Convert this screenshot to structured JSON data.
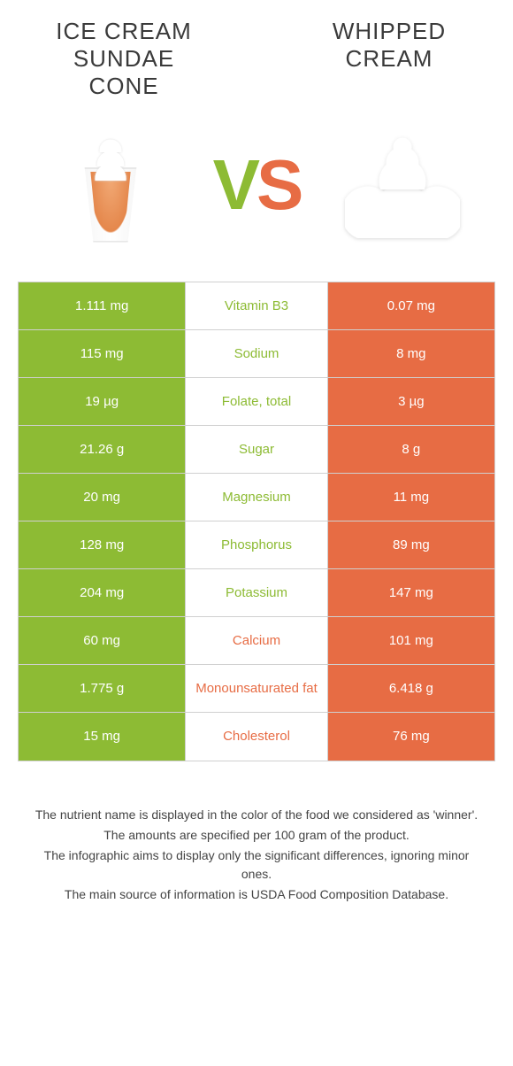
{
  "foods": {
    "left": {
      "title": "Ice cream sundae cone"
    },
    "right": {
      "title": "Whipped cream"
    }
  },
  "vs_label": {
    "v": "V",
    "s": "S"
  },
  "colors": {
    "left": "#8dbb34",
    "right": "#e76c44",
    "border": "#d0d0d0",
    "bg": "#ffffff"
  },
  "table": {
    "rows": [
      {
        "nutrient": "Vitamin B3",
        "left": "1.111 mg",
        "right": "0.07 mg",
        "winner": "left"
      },
      {
        "nutrient": "Sodium",
        "left": "115 mg",
        "right": "8 mg",
        "winner": "left"
      },
      {
        "nutrient": "Folate, total",
        "left": "19 µg",
        "right": "3 µg",
        "winner": "left"
      },
      {
        "nutrient": "Sugar",
        "left": "21.26 g",
        "right": "8 g",
        "winner": "left"
      },
      {
        "nutrient": "Magnesium",
        "left": "20 mg",
        "right": "11 mg",
        "winner": "left"
      },
      {
        "nutrient": "Phosphorus",
        "left": "128 mg",
        "right": "89 mg",
        "winner": "left"
      },
      {
        "nutrient": "Potassium",
        "left": "204 mg",
        "right": "147 mg",
        "winner": "left"
      },
      {
        "nutrient": "Calcium",
        "left": "60 mg",
        "right": "101 mg",
        "winner": "right"
      },
      {
        "nutrient": "Monounsaturated fat",
        "left": "1.775 g",
        "right": "6.418 g",
        "winner": "right"
      },
      {
        "nutrient": "Cholesterol",
        "left": "15 mg",
        "right": "76 mg",
        "winner": "right"
      }
    ]
  },
  "notes": [
    "The nutrient name is displayed in the color of the food we considered as 'winner'.",
    "The amounts are specified per 100 gram of the product.",
    "The infographic aims to display only the significant differences, ignoring minor ones.",
    "The main source of information is USDA Food Composition Database."
  ]
}
